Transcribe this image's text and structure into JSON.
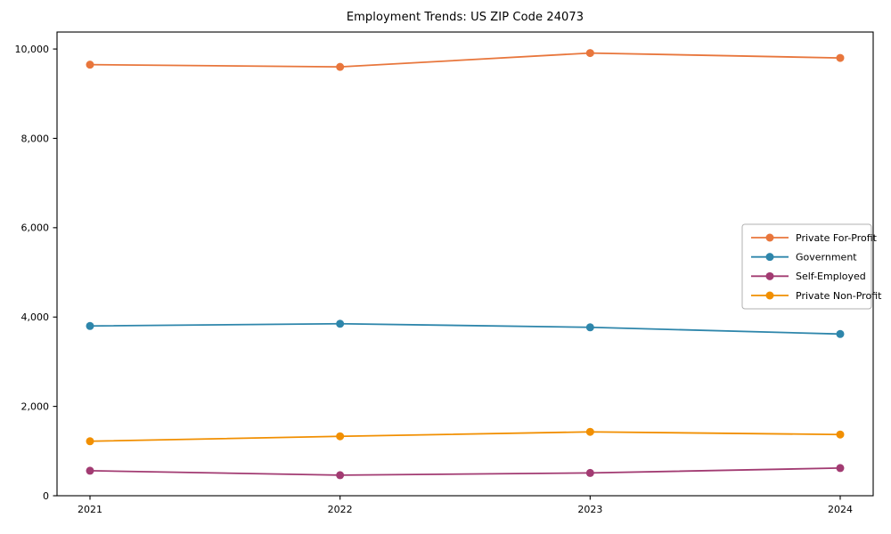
{
  "chart_data": {
    "type": "line",
    "title": "Employment Trends: US ZIP Code 24073",
    "xlabel": "",
    "ylabel": "",
    "x": [
      "2021",
      "2022",
      "2023",
      "2024"
    ],
    "series": [
      {
        "name": "Private For-Profit",
        "color": "#E8763C",
        "values": [
          9650,
          9600,
          9910,
          9800
        ]
      },
      {
        "name": "Government",
        "color": "#2E86AB",
        "values": [
          3800,
          3850,
          3770,
          3620
        ]
      },
      {
        "name": "Self-Employed",
        "color": "#A23B72",
        "values": [
          560,
          460,
          510,
          620
        ]
      },
      {
        "name": "Private Non-Profit",
        "color": "#F18F01",
        "values": [
          1220,
          1330,
          1430,
          1370
        ]
      }
    ],
    "ylim": [
      0,
      10380
    ],
    "yticks": [
      0,
      2000,
      4000,
      6000,
      8000,
      10000
    ],
    "ytick_labels": [
      "0",
      "2,000",
      "4,000",
      "6,000",
      "8,000",
      "10,000"
    ],
    "grid": false,
    "legend_position": "center right",
    "axis_color": "#000000",
    "background_color": "#ffffff"
  }
}
